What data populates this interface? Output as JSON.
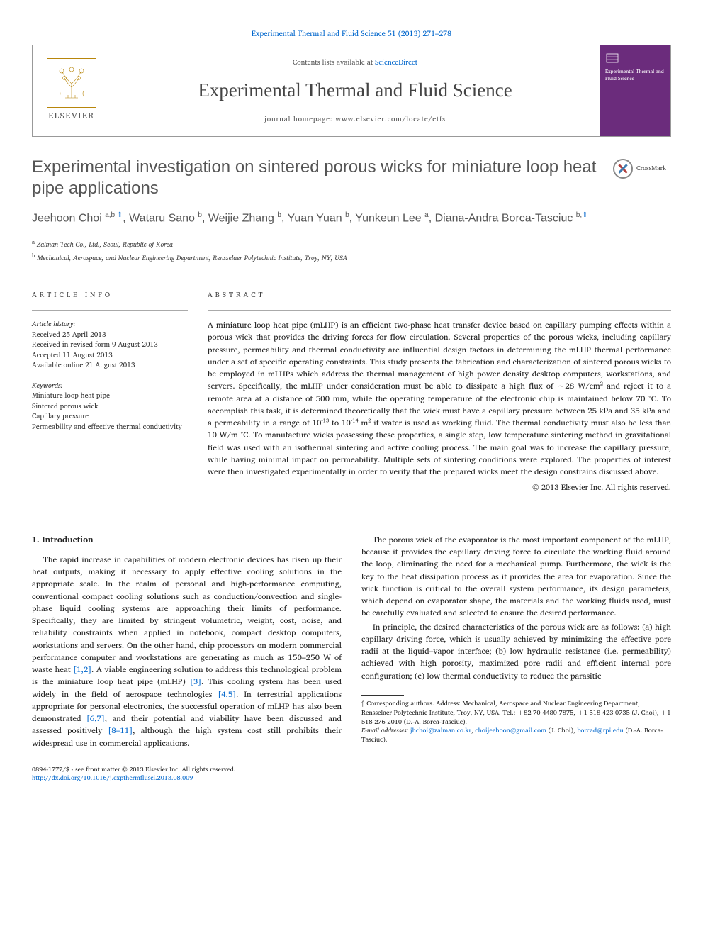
{
  "top_link": "Experimental Thermal and Fluid Science 51 (2013) 271–278",
  "header": {
    "elsevier_label": "ELSEVIER",
    "contents_prefix": "Contents lists available at ",
    "contents_link": "ScienceDirect",
    "journal_name": "Experimental Thermal and Fluid Science",
    "homepage_prefix": "journal homepage: ",
    "homepage": "www.elsevier.com/locate/etfs",
    "cover_text": "Experimental Thermal and Fluid Science"
  },
  "crossmark": "CrossMark",
  "title": "Experimental investigation on sintered porous wicks for miniature loop heat pipe applications",
  "authors_html": "Jeehoon Choi <sup class='sup-dark'>a,b,</sup><sup>⇑</sup>, Wataru Sano <sup class='sup-dark'>b</sup>, Weijie Zhang <sup class='sup-dark'>b</sup>, Yuan Yuan <sup class='sup-dark'>b</sup>, Yunkeun Lee <sup class='sup-dark'>a</sup>, Diana-Andra Borca-Tasciuc <sup class='sup-dark'>b,</sup><sup>⇑</sup>",
  "affiliations": {
    "a": "Zalman Tech Co., Ltd., Seoul, Republic of Korea",
    "b": "Mechanical, Aerospace, and Nuclear Engineering Department, Rensselaer Polytechnic Institute, Troy, NY, USA"
  },
  "info": {
    "heading": "article info",
    "history_label": "Article history:",
    "history": [
      "Received 25 April 2013",
      "Received in revised form 9 August 2013",
      "Accepted 11 August 2013",
      "Available online 21 August 2013"
    ],
    "keywords_label": "Keywords:",
    "keywords": [
      "Miniature loop heat pipe",
      "Sintered porous wick",
      "Capillary pressure",
      "Permeability and effective thermal conductivity"
    ]
  },
  "abstract": {
    "heading": "abstract",
    "text": "A miniature loop heat pipe (mLHP) is an efficient two-phase heat transfer device based on capillary pumping effects within a porous wick that provides the driving forces for flow circulation. Several properties of the porous wicks, including capillary pressure, permeability and thermal conductivity are influential design factors in determining the mLHP thermal performance under a set of specific operating constraints. This study presents the fabrication and characterization of sintered porous wicks to be employed in mLHPs which address the thermal management of high power density desktop computers, workstations, and servers. Specifically, the mLHP under consideration must be able to dissipate a high flux of ∼28 W/cm² and reject it to a remote area at a distance of 500 mm, while the operating temperature of the electronic chip is maintained below 70 °C. To accomplish this task, it is determined theoretically that the wick must have a capillary pressure between 25 kPa and 35 kPa and a permeability in a range of 10⁻¹³ to 10⁻¹⁴ m² if water is used as working fluid. The thermal conductivity must also be less than 10 W/m °C. To manufacture wicks possessing these properties, a single step, low temperature sintering method in gravitational field was used with an isothermal sintering and active cooling process. The main goal was to increase the capillary pressure, while having minimal impact on permeability. Multiple sets of sintering conditions were explored. The properties of interest were then investigated experimentally in order to verify that the prepared wicks meet the design constrains discussed above.",
    "copyright": "© 2013 Elsevier Inc. All rights reserved."
  },
  "section1": {
    "heading": "1. Introduction",
    "p1": "The rapid increase in capabilities of modern electronic devices has risen up their heat outputs, making it necessary to apply effective cooling solutions in the appropriate scale. In the realm of personal and high-performance computing, conventional compact cooling solutions such as conduction/convection and single-phase liquid cooling systems are approaching their limits of performance. Specifically, they are limited by stringent volumetric, weight, cost, noise, and reliability constraints when applied in notebook, compact desktop computers, workstations and servers. On the other hand, chip processors on modern commercial performance computer and workstations are generating as much as 150–250 W of waste heat ",
    "c1": "[1,2]",
    "p1b": ". A viable engineering solution to address this technological problem is the miniature loop heat pipe (mLHP) ",
    "c2": "[3]",
    "p1c": ". This cooling system has been used widely in the field of ",
    "p2a": "aerospace technologies ",
    "c3": "[4,5]",
    "p2b": ". In terrestrial applications appropriate for personal electronics, the successful operation of mLHP has also been demonstrated ",
    "c4": "[6,7]",
    "p2c": ", and their potential and viability have been discussed and assessed positively ",
    "c5": "[8–11]",
    "p2d": ", although the high system cost still prohibits their widespread use in commercial applications.",
    "p3": "The porous wick of the evaporator is the most important component of the mLHP, because it provides the capillary driving force to circulate the working fluid around the loop, eliminating the need for a mechanical pump. Furthermore, the wick is the key to the heat dissipation process as it provides the area for evaporation. Since the wick function is critical to the overall system performance, its design parameters, which depend on evaporator shape, the materials and the working fluids used, must be carefully evaluated and selected to ensure the desired performance.",
    "p4": "In principle, the desired characteristics of the porous wick are as follows: (a) high capillary driving force, which is usually achieved by minimizing the effective pore radii at the liquid–vapor interface; (b) low hydraulic resistance (i.e. permeability) achieved with high porosity, maximized pore radii and efficient internal pore configuration; (c) low thermal conductivity to reduce the parasitic"
  },
  "footnotes": {
    "corr": "Corresponding authors. Address: Mechanical, Aerospace and Nuclear Engineering Department, Rensselaer Polytechnic Institute, Troy, NY, USA. Tel.: +82 70 4480 7875, +1 518 423 0735 (J. Choi), +1 518 276 2010 (D.-A. Borca-Tasciuc).",
    "email_label": "E-mail addresses:",
    "email1": "jhchoi@zalman.co.kr",
    "email2": "choijeehoon@gmail.com",
    "email2_who": " (J. Choi), ",
    "email3": "borcad@rpi.edu",
    "email3_who": " (D.-A. Borca-Tasciuc)."
  },
  "footer": {
    "issn": "0894-1777/$ - see front matter © 2013 Elsevier Inc. All rights reserved.",
    "doi": "http://dx.doi.org/10.1016/j.expthermflusci.2013.08.009"
  },
  "colors": {
    "link": "#0066cc",
    "text": "#222222",
    "heading_grey": "#555555",
    "purple": "#6b2c7c"
  }
}
